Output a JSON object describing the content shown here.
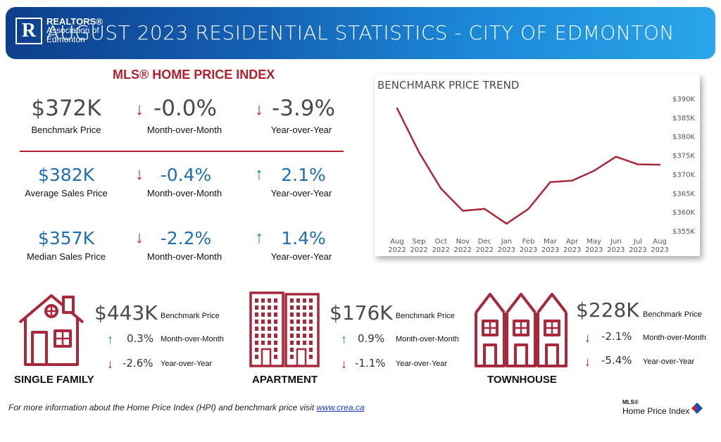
{
  "header": {
    "logo_line1": "REALTORS®",
    "logo_line2": "Association of",
    "logo_line3": "Edmonton",
    "title": "AUGUST 2023 RESIDENTIAL STATISTICS - CITY OF EDMONTON"
  },
  "hpi": {
    "title": "MLS® HOME PRICE INDEX",
    "rows": [
      {
        "value": "$372K",
        "label": "Benchmark Price",
        "mom": "-0.0%",
        "mom_label": "Month-over-Month",
        "mom_dir": "down",
        "yoy": "-3.9%",
        "yoy_label": "Year-over-Year",
        "yoy_dir": "down"
      },
      {
        "value": "$382K",
        "label": "Average Sales Price",
        "mom": "-0.4%",
        "mom_label": "Month-over-Month",
        "mom_dir": "down",
        "yoy": "2.1%",
        "yoy_label": "Year-over-Year",
        "yoy_dir": "up"
      },
      {
        "value": "$357K",
        "label": "Median Sales Price",
        "mom": "-2.2%",
        "mom_label": "Month-over-Month",
        "mom_dir": "down",
        "yoy": "1.4%",
        "yoy_label": "Year-over-Year",
        "yoy_dir": "up"
      }
    ]
  },
  "chart_data": {
    "type": "line",
    "title": "BENCHMARK PRICE TREND",
    "categories": [
      "Aug 2022",
      "Sep 2022",
      "Oct 2022",
      "Nov 2022",
      "Dec 2022",
      "Jan 2023",
      "Feb 2023",
      "Mar 2023",
      "Apr 2023",
      "May 2023",
      "Jun 2023",
      "Jul 2023",
      "Aug 2023"
    ],
    "x_labels": [
      [
        "Aug",
        "2022"
      ],
      [
        "Sep",
        "2022"
      ],
      [
        "Oct",
        "2022"
      ],
      [
        "Nov",
        "2022"
      ],
      [
        "Dec",
        "2022"
      ],
      [
        "Jan",
        "2023"
      ],
      [
        "Feb",
        "2023"
      ],
      [
        "Mar",
        "2023"
      ],
      [
        "Apr",
        "2023"
      ],
      [
        "May",
        "2023"
      ],
      [
        "Jun",
        "2023"
      ],
      [
        "Jul",
        "2023"
      ],
      [
        "Aug",
        "2023"
      ]
    ],
    "values": [
      387400,
      375800,
      366200,
      360300,
      360800,
      356900,
      360800,
      367900,
      368300,
      370900,
      374600,
      372600,
      372500
    ],
    "y_ticks": [
      355000,
      360000,
      365000,
      370000,
      375000,
      380000,
      385000,
      390000
    ],
    "y_tick_labels": [
      "$355K",
      "$360K",
      "$365K",
      "$370K",
      "$375K",
      "$380K",
      "$385K",
      "$390K"
    ],
    "ylim": [
      355000,
      390000
    ],
    "line_color": "#a8283c",
    "axis_side": "right",
    "grid": false
  },
  "properties": [
    {
      "name": "SINGLE FAMILY",
      "icon": "single-family-house-icon",
      "price": "$443K",
      "price_label": "Benchmark Price",
      "mom": "0.3%",
      "mom_dir": "up",
      "mom_label": "Month-over-Month",
      "yoy": "-2.6%",
      "yoy_dir": "down",
      "yoy_label": "Year-over-Year"
    },
    {
      "name": "APARTMENT",
      "icon": "apartment-building-icon",
      "price": "$176K",
      "price_label": "Benchmark Price",
      "mom": "0.9%",
      "mom_dir": "up",
      "mom_label": "Month-over-Month",
      "yoy": "-1.1%",
      "yoy_dir": "down",
      "yoy_label": "Year-over-Year"
    },
    {
      "name": "TOWNHOUSE",
      "icon": "townhouse-icon",
      "price": "$228K",
      "price_label": "Benchmark Price",
      "mom": "-2.1%",
      "mom_dir": "down",
      "mom_label": "Month-over-Month",
      "yoy": "-5.4%",
      "yoy_dir": "down",
      "yoy_label": "Year-over-Year"
    }
  ],
  "colors": {
    "brand_red": "#b5202e",
    "up_green": "#1f9a3e",
    "value_blue": "#1e6fb0",
    "banner_blue": "#1560b3"
  },
  "footer": {
    "text": "For more information about the Home Price Index (HPI) and benchmark price visit ",
    "link": "www.crea.ca"
  },
  "hpi_logo": {
    "line1": "MLS®",
    "line2": "Home Price Index"
  }
}
